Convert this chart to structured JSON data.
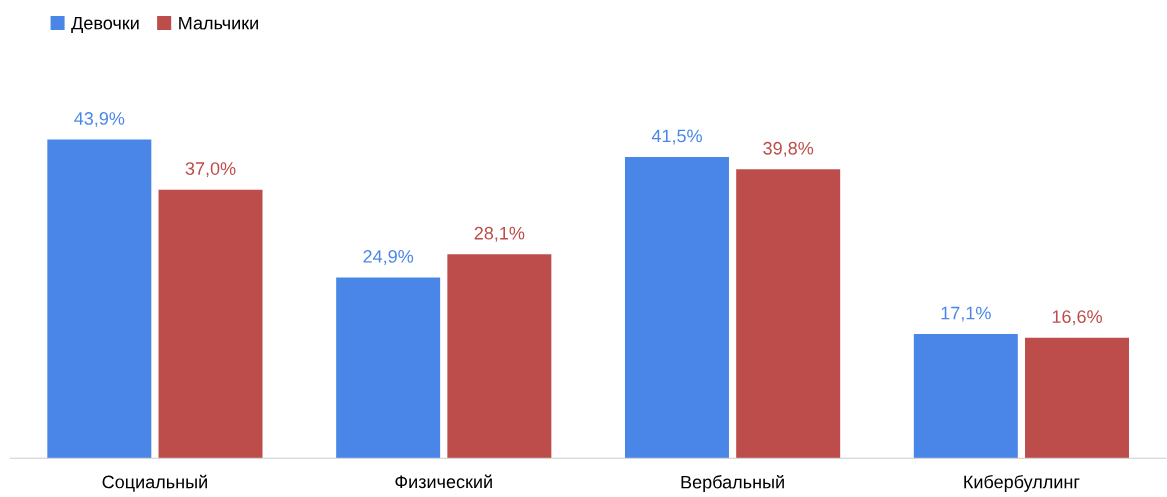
{
  "chart_data": {
    "type": "bar",
    "categories": [
      "Социальный",
      "Физический",
      "Вербальный",
      "Кибербуллинг"
    ],
    "series": [
      {
        "name": "Девочки",
        "color": "#4a86e8",
        "values": [
          43.9,
          24.9,
          41.5,
          17.1
        ],
        "value_labels": [
          "43,9%",
          "24,9%",
          "41,5%",
          "17,1%"
        ]
      },
      {
        "name": "Мальчики",
        "color": "#bc4d4a",
        "values": [
          37.0,
          28.1,
          39.8,
          16.6
        ],
        "value_labels": [
          "37,0%",
          "28,1%",
          "39,8%",
          "16,6%"
        ]
      }
    ],
    "legend": "top left"
  }
}
